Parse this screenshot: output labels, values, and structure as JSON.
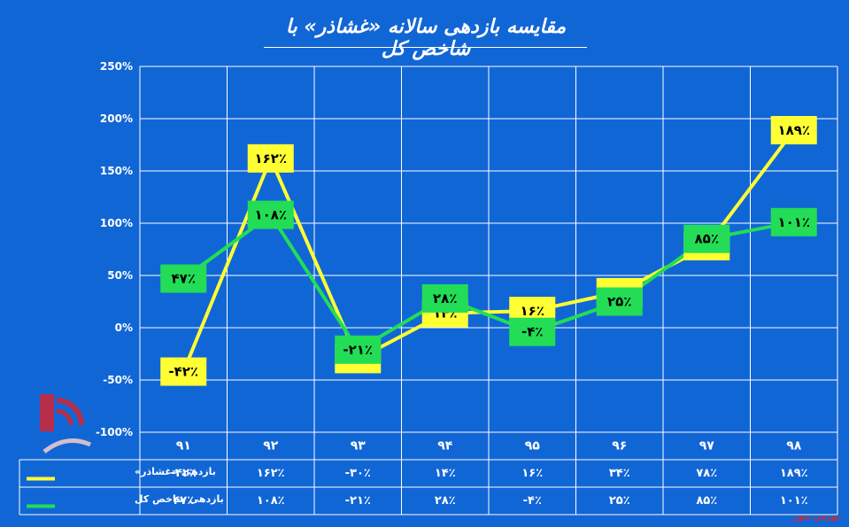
{
  "title": "مقایسه بازدهی سالانه «غشاذر» با شاخص کل",
  "watermark": "بورس نیوز",
  "chart_data": {
    "type": "line",
    "categories": [
      "۹۱",
      "۹۲",
      "۹۳",
      "۹۴",
      "۹۵",
      "۹۶",
      "۹۷",
      "۹۸"
    ],
    "y_ticks": [
      "-100%",
      "-50%",
      "0%",
      "50%",
      "100%",
      "150%",
      "200%",
      "250%"
    ],
    "ylim": [
      -100,
      250
    ],
    "grid": true,
    "legend_placement": "bottom-table",
    "series": [
      {
        "name": "بازدهی «غشاذر»",
        "color": "#ffff33",
        "values": [
          -42,
          162,
          -30,
          14,
          16,
          34,
          78,
          189
        ],
        "labels": [
          "-۴۲٪",
          "۱۶۲٪",
          "-۳۰٪",
          "۱۴٪",
          "۱۶٪",
          "۳۴٪",
          "۷۸٪",
          "۱۸۹٪"
        ]
      },
      {
        "name": "بازدهی شاخص کل",
        "color": "#22dd55",
        "values": [
          47,
          108,
          -21,
          28,
          -4,
          25,
          85,
          101
        ],
        "labels": [
          "۴۷٪",
          "۱۰۸٪",
          "-۲۱٪",
          "۲۸٪",
          "-۴٪",
          "۲۵٪",
          "۸۵٪",
          "۱۰۱٪"
        ]
      }
    ]
  }
}
